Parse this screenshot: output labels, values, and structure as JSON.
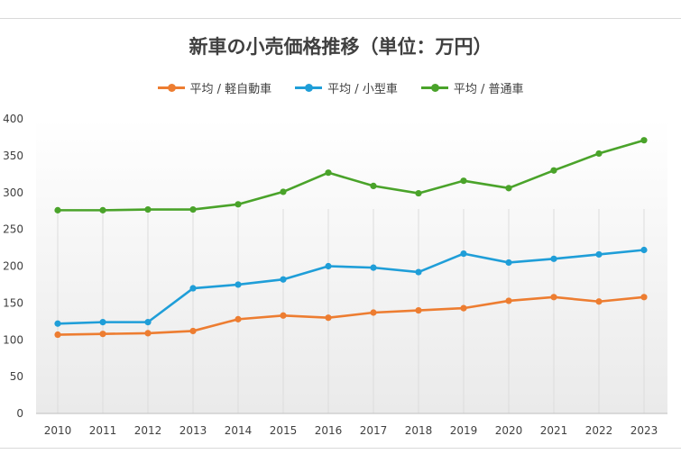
{
  "chart_data": {
    "type": "line",
    "title": "新車の小売価格推移（単位：万円）",
    "categories": [
      "2010",
      "2011",
      "2012",
      "2013",
      "2014",
      "2015",
      "2016",
      "2017",
      "2018",
      "2019",
      "2020",
      "2021",
      "2022",
      "2023"
    ],
    "series": [
      {
        "name": "平均 / 軽自動車",
        "color": "#ed7d31",
        "values": [
          107,
          108,
          109,
          112,
          128,
          133,
          130,
          137,
          140,
          143,
          153,
          158,
          152,
          158
        ]
      },
      {
        "name": "平均 / 小型車",
        "color": "#1f9ed8",
        "values": [
          122,
          124,
          124,
          170,
          175,
          182,
          200,
          198,
          192,
          217,
          205,
          210,
          216,
          222
        ]
      },
      {
        "name": "平均 / 普通車",
        "color": "#4aa32a",
        "values": [
          276,
          276,
          277,
          277,
          284,
          301,
          327,
          309,
          299,
          316,
          306,
          330,
          353,
          371
        ]
      }
    ],
    "ylim": [
      0,
      400
    ],
    "yticks": [
      "0",
      "50",
      "100",
      "150",
      "200",
      "250",
      "300",
      "350",
      "400"
    ],
    "grid": "vertical",
    "legend_position": "top"
  }
}
